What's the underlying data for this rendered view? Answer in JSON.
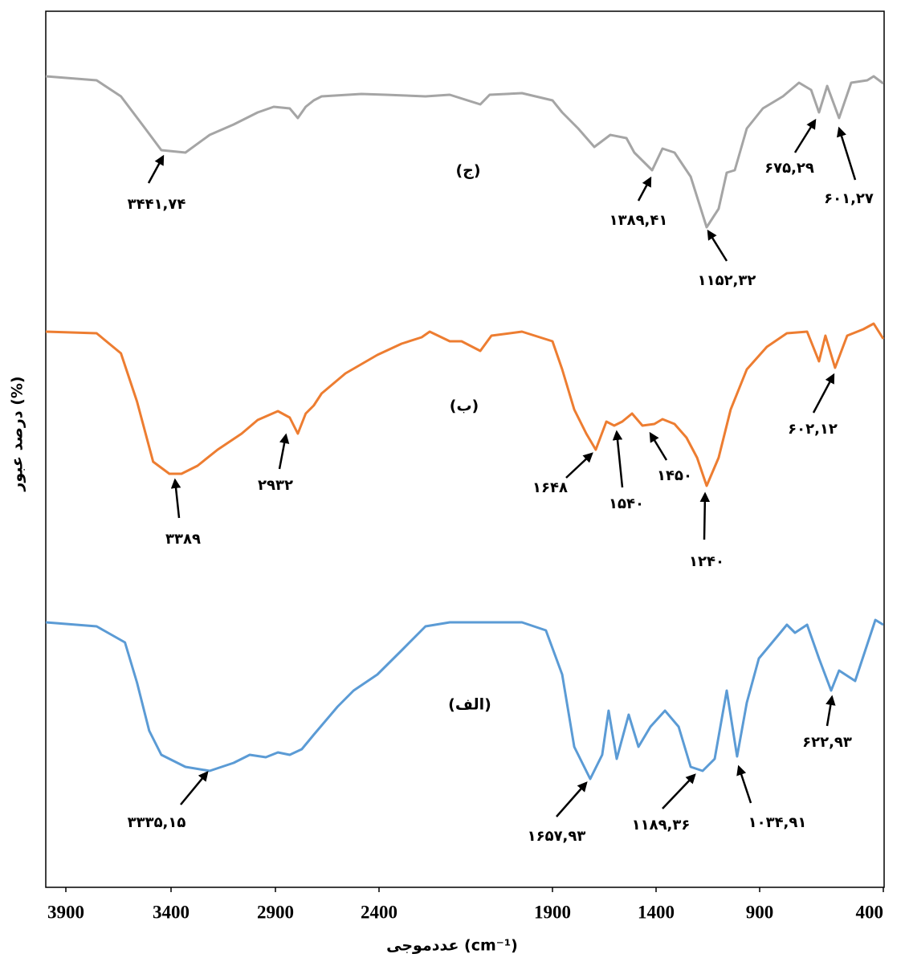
{
  "chart_data": {
    "type": "line",
    "x_label": "عددموجی (cm⁻¹)",
    "y_label": "درصد عبور (%)",
    "xlim": [
      4000,
      400
    ],
    "xticks": [
      3900,
      3400,
      2900,
      2400,
      1900,
      1400,
      900,
      400
    ],
    "ylim": [
      0,
      109.1
    ],
    "series": [
      {
        "name": "(ج)",
        "color": "#a5a5a5",
        "x": [
          4000,
          3754,
          3638,
          3523,
          3446,
          3331,
          3215,
          3100,
          2985,
          2908,
          2831,
          2792,
          2754,
          2715,
          2677,
          2485,
          2381,
          2266,
          2196,
          2108,
          2081,
          1988,
          1900,
          1853,
          1776,
          1698,
          1621,
          1543,
          1505,
          1419,
          1369,
          1311,
          1233,
          1156,
          1098,
          1059,
          1020,
          962,
          887,
          806,
          741,
          692,
          660,
          627,
          579,
          530,
          465,
          439,
          400
        ],
        "values": [
          101.0,
          100.5,
          98.5,
          94.5,
          91.8,
          91.5,
          93.7,
          95.0,
          96.5,
          97.2,
          97.0,
          95.8,
          97.2,
          98.0,
          98.5,
          98.8,
          98.7,
          98.5,
          98.7,
          97.5,
          98.7,
          98.9,
          98.0,
          96.5,
          94.5,
          92.2,
          93.7,
          93.3,
          91.5,
          89.3,
          92.0,
          91.5,
          88.5,
          82.2,
          84.5,
          89.0,
          89.3,
          94.5,
          97.0,
          98.5,
          100.2,
          99.3,
          96.5,
          99.8,
          95.8,
          100.2,
          100.5,
          101.0,
          100.1
        ],
        "annotations": [
          "۳۴۴۱,۷۴",
          "۱۳۸۹,۴۱",
          "۱۱۵۲,۳۲",
          "۶۷۵,۲۹",
          "۶۰۱,۲۷"
        ]
      },
      {
        "name": "(ب)",
        "color": "#ed7d31",
        "x": [
          4000,
          3754,
          3638,
          3562,
          3485,
          3408,
          3350,
          3273,
          3177,
          3062,
          2985,
          2888,
          2831,
          2792,
          2754,
          2715,
          2677,
          2562,
          2408,
          2335,
          2277,
          2254,
          2196,
          2162,
          2108,
          2076,
          1988,
          1900,
          1853,
          1795,
          1737,
          1691,
          1640,
          1602,
          1563,
          1516,
          1466,
          1408,
          1369,
          1311,
          1253,
          1202,
          1156,
          1098,
          1040,
          962,
          871,
          790,
          708,
          660,
          634,
          595,
          546,
          481,
          439,
          400
        ],
        "values": [
          69.2,
          69.0,
          66.5,
          60.5,
          53.0,
          51.5,
          51.5,
          52.5,
          54.5,
          56.5,
          58.2,
          59.3,
          58.5,
          56.5,
          59.0,
          60.0,
          61.5,
          64.0,
          66.3,
          67.7,
          68.5,
          69.2,
          68.0,
          68.0,
          66.8,
          68.7,
          69.2,
          68.0,
          64.5,
          59.5,
          56.5,
          54.5,
          58.0,
          57.5,
          58.0,
          59.0,
          57.5,
          57.7,
          58.3,
          57.7,
          56.0,
          53.5,
          50.0,
          53.5,
          59.5,
          64.5,
          67.3,
          69.0,
          69.2,
          65.5,
          68.7,
          64.7,
          68.7,
          69.5,
          70.2,
          68.3
        ],
        "annotations": [
          "۳۳۸۹",
          "۲۹۳۲",
          "۱۶۴۸",
          "۱۵۴۰",
          "۱۴۵۰",
          "۱۲۴۰",
          "۶۰۲,۱۲"
        ]
      },
      {
        "name": "(الف)",
        "color": "#5b9bd5",
        "x": [
          4000,
          3754,
          3619,
          3562,
          3504,
          3446,
          3331,
          3215,
          3100,
          3023,
          2946,
          2888,
          2831,
          2773,
          2715,
          2600,
          2523,
          2408,
          2335,
          2266,
          2196,
          1988,
          1919,
          1853,
          1795,
          1718,
          1660,
          1629,
          1590,
          1532,
          1485,
          1427,
          1357,
          1291,
          1233,
          1175,
          1117,
          1059,
          1009,
          962,
          904,
          822,
          790,
          757,
          708,
          660,
          611,
          579,
          514,
          432,
          400
        ],
        "values": [
          33.0,
          32.5,
          30.5,
          25.5,
          19.5,
          16.5,
          15.0,
          14.5,
          15.5,
          16.5,
          16.2,
          16.8,
          16.5,
          17.2,
          19.0,
          22.5,
          24.5,
          26.5,
          29.5,
          32.5,
          33.0,
          33.0,
          32.0,
          26.5,
          17.5,
          13.5,
          16.5,
          22.0,
          16.0,
          21.5,
          17.5,
          20.0,
          22.0,
          20.0,
          15.0,
          14.5,
          16.0,
          24.5,
          16.3,
          23.0,
          28.5,
          31.5,
          32.7,
          31.7,
          32.7,
          28.5,
          24.5,
          27.0,
          25.7,
          33.3,
          32.7
        ],
        "annotations": [
          "۳۳۳۵,۱۵",
          "۱۶۵۷,۹۳",
          "۱۱۸۹,۳۶",
          "۱۰۳۴,۹۱",
          "۶۲۲,۹۳"
        ]
      }
    ]
  }
}
